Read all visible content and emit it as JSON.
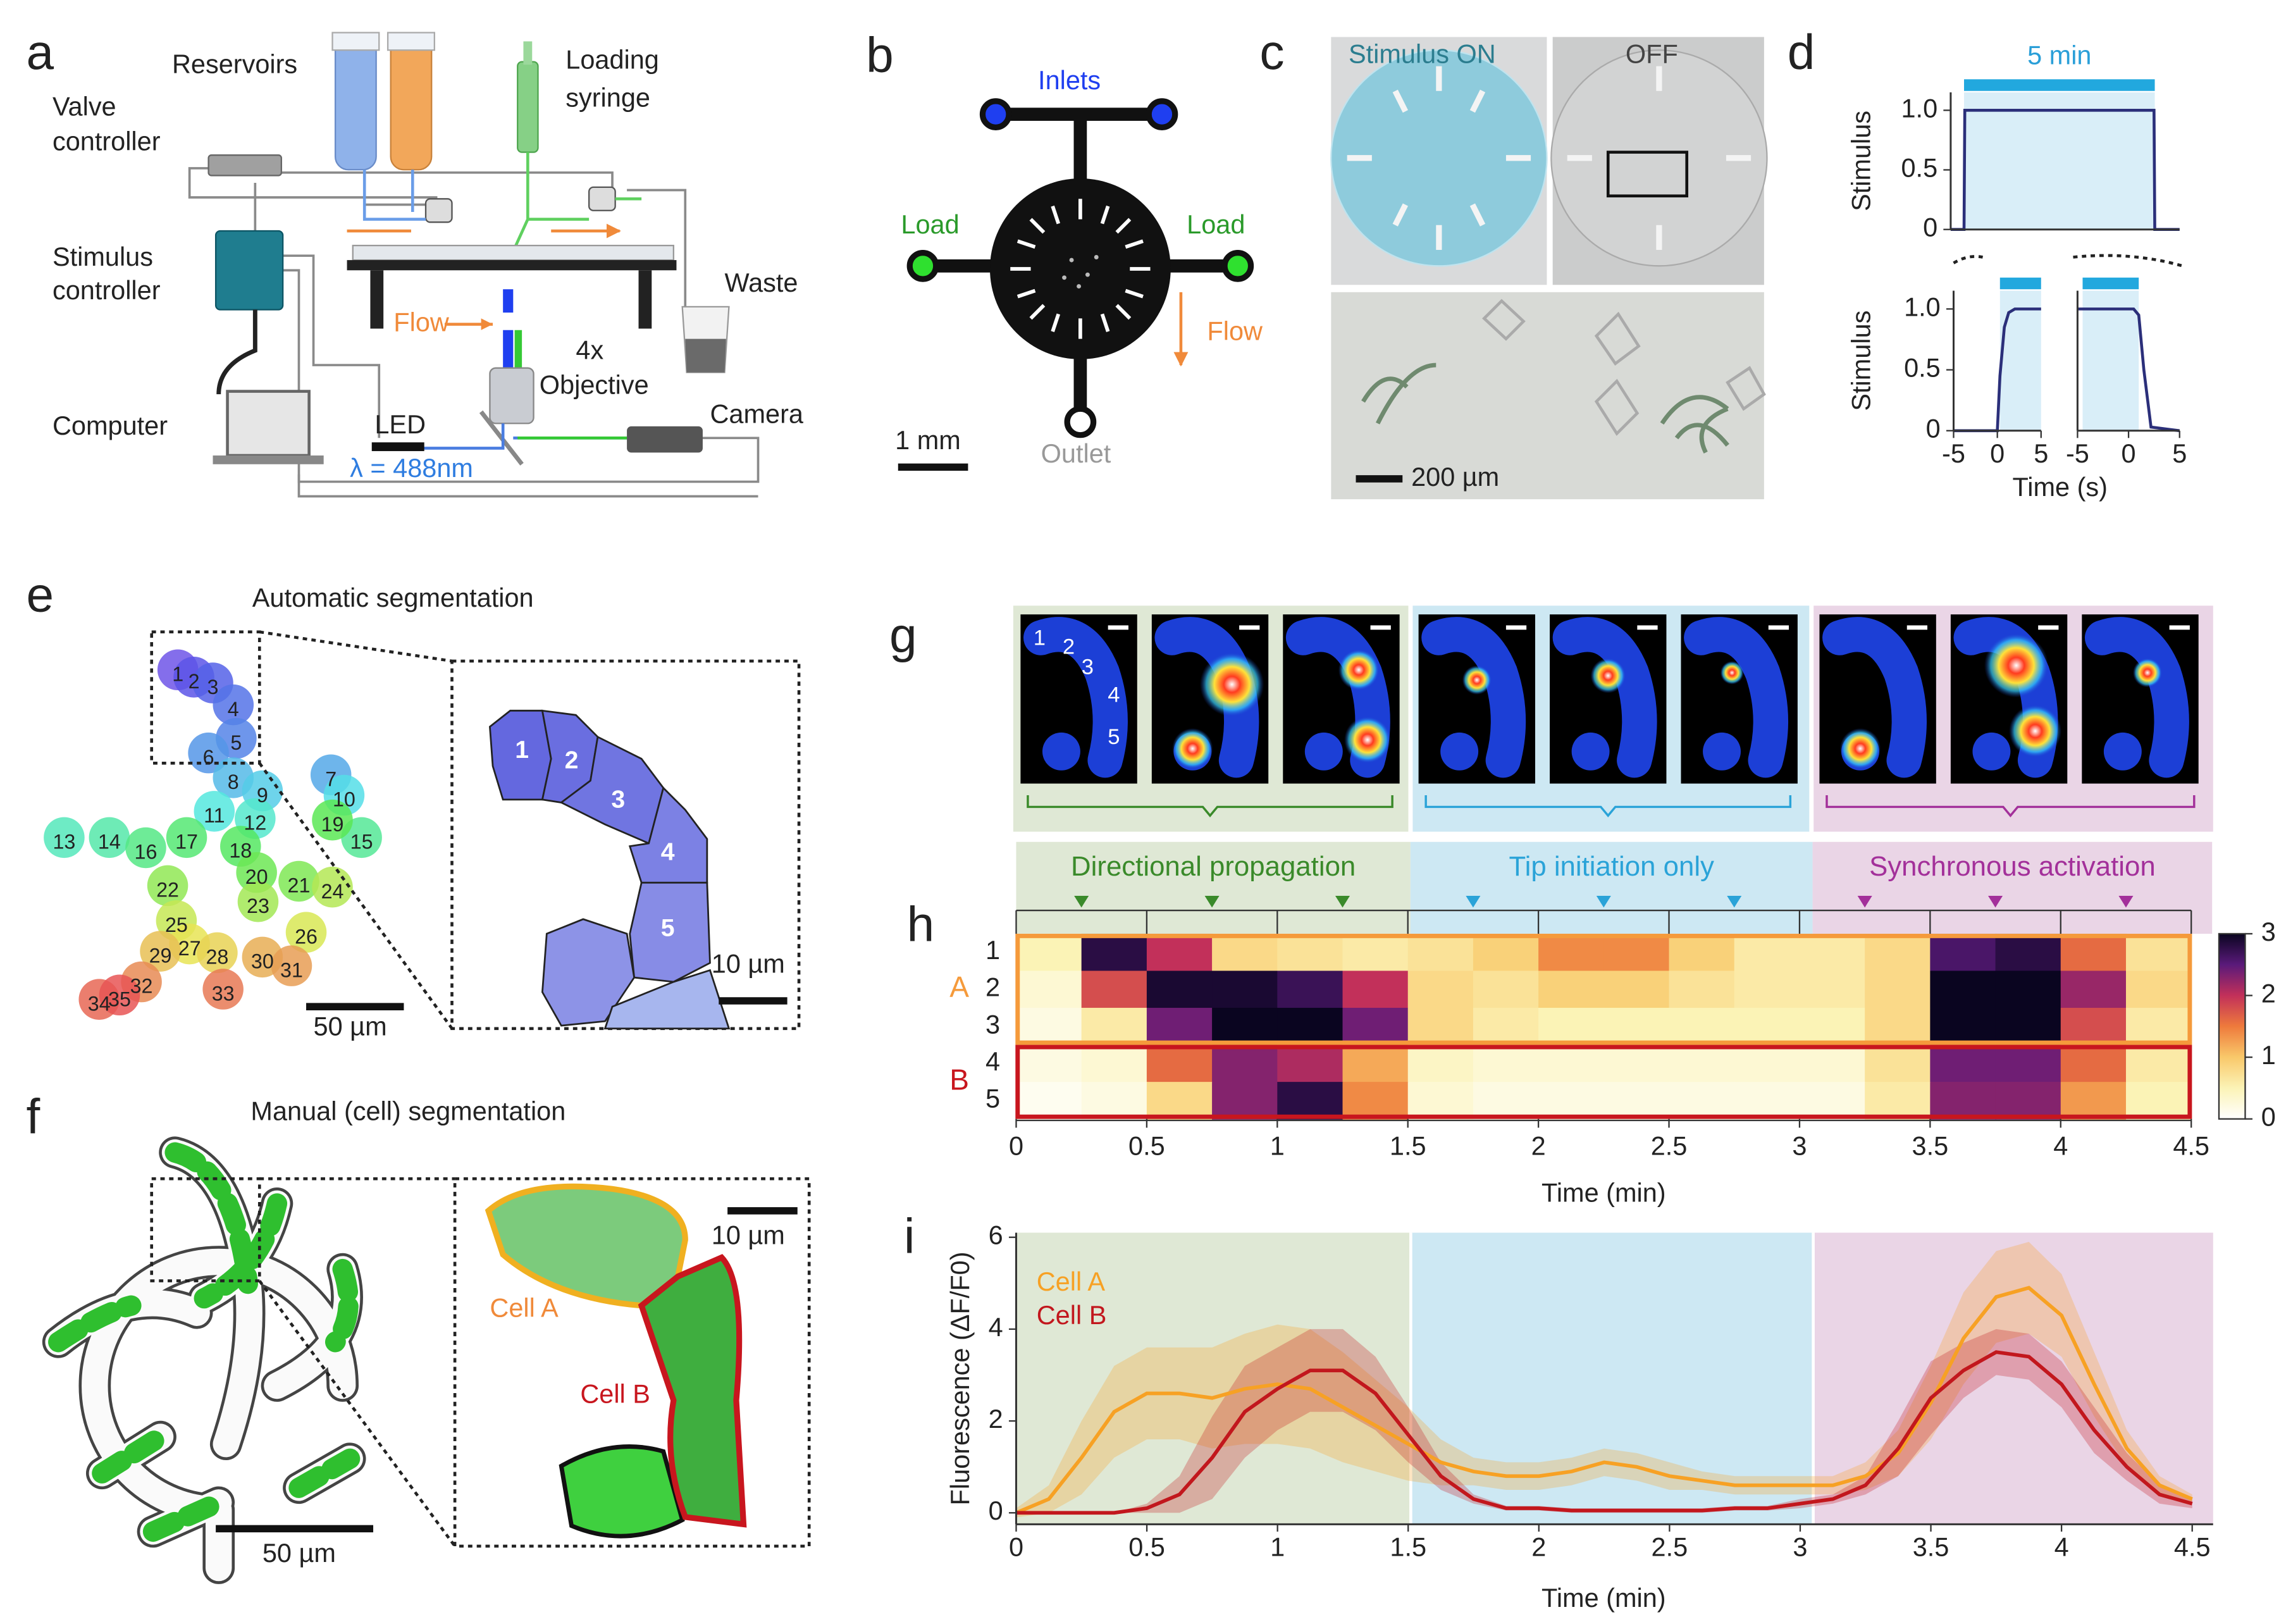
{
  "panel_labels": [
    "a",
    "b",
    "c",
    "d",
    "e",
    "f",
    "g",
    "h",
    "i"
  ],
  "panel_a": {
    "reservoirs": "Reservoirs",
    "syringe": [
      "Loading",
      "syringe"
    ],
    "valve_controller": [
      "Valve",
      "controller"
    ],
    "stimulus_controller": [
      "Stimulus",
      "controller"
    ],
    "computer": "Computer",
    "flow": "Flow",
    "objective": [
      "4x",
      "Objective"
    ],
    "led": "LED",
    "wavelength": "λ = 488nm",
    "camera": "Camera",
    "waste": "Waste"
  },
  "panel_b": {
    "inlets": "Inlets",
    "load_left": "Load",
    "load_right": "Load",
    "flow": "Flow",
    "outlet": "Outlet",
    "scale": "1 mm"
  },
  "panel_c": {
    "on": "Stimulus ON",
    "off": "OFF",
    "scale": "200 µm"
  },
  "panel_e": {
    "title": "Automatic segmentation",
    "scale_main": "50 µm",
    "scale_zoom": "10 µm",
    "roi_labels": [
      1,
      2,
      3,
      4,
      5,
      6,
      7,
      8,
      9,
      10,
      11,
      12,
      13,
      14,
      15,
      16,
      17,
      18,
      19,
      20,
      21,
      22,
      23,
      24,
      25,
      26,
      27,
      28,
      29,
      30,
      31,
      32,
      33,
      34,
      35
    ],
    "zoom_labels": [
      1,
      2,
      3,
      4,
      5
    ]
  },
  "panel_f": {
    "title": "Manual (cell) segmentation",
    "scale_main": "50 µm",
    "scale_zoom": "10 µm",
    "cell_a": "Cell A",
    "cell_b": "Cell B"
  },
  "panel_g": {
    "roi_labels": [
      1,
      2,
      3,
      4,
      5
    ]
  },
  "chart_data": [
    {
      "type": "line",
      "title": "5 min",
      "ylabel": "Stimulus",
      "x": [
        -0.35,
        0,
        0.02,
        4.98,
        5,
        5.65
      ],
      "series": [
        {
          "color": "#2b2f7a",
          "values": [
            0,
            0,
            1,
            1,
            0,
            0
          ]
        }
      ],
      "stimulus": [
        0,
        5
      ],
      "stimulus_color": "#22a8de",
      "fill": "#d9eef8",
      "xlim": [
        -0.35,
        5.65
      ],
      "ylim": [
        0,
        1.15
      ],
      "yticks": [
        0,
        0.5,
        {
          "value": 1,
          "label": "1.0"
        }
      ]
    },
    {
      "type": "line",
      "ylabel": "Stimulus",
      "xlabel": "Time (s)",
      "x": [
        -5,
        0,
        0.3,
        0.8,
        1.3,
        2,
        5
      ],
      "series": [
        {
          "color": "#2b2f7a",
          "values": [
            0,
            0,
            0.45,
            0.85,
            0.97,
            1,
            1
          ]
        }
      ],
      "stimulus": [
        0.3,
        5
      ],
      "stimulus_color": "#22a8de",
      "fill": "#d9eef8",
      "xlim": [
        -5,
        5
      ],
      "ylim": [
        0,
        1.15
      ],
      "xticks": [
        -5,
        0,
        5
      ],
      "yticks": [
        0,
        0.5,
        {
          "value": 1,
          "label": "1.0"
        }
      ]
    },
    {
      "type": "line",
      "x": [
        -5,
        0.5,
        1,
        1.5,
        2.2,
        5
      ],
      "series": [
        {
          "color": "#2b2f7a",
          "values": [
            1,
            1,
            0.95,
            0.5,
            0.03,
            0
          ]
        }
      ],
      "stimulus": [
        -4.5,
        1
      ],
      "stimulus_color": "#22a8de",
      "fill": "#d9eef8",
      "xlim": [
        -5,
        5
      ],
      "ylim": [
        0,
        1.15
      ],
      "xticks": [
        -5,
        0,
        5
      ]
    },
    {
      "type": "heatmap",
      "rows": [
        "1",
        "2",
        "3",
        "4",
        "5"
      ],
      "groups": [
        {
          "name": "A",
          "rows": [
            "1",
            "2",
            "3"
          ],
          "color": "#f59a3b"
        },
        {
          "name": "B",
          "rows": [
            "4",
            "5"
          ],
          "color": "#c8161e"
        }
      ],
      "bins": [
        0,
        0.25,
        0.5,
        0.75,
        1,
        1.25,
        1.5,
        1.75,
        2,
        2.25,
        2.5,
        2.75,
        3,
        3.25,
        3.5,
        3.75,
        4,
        4.25,
        4.5
      ],
      "z": [
        [
          0.5,
          2.8,
          2.0,
          0.8,
          0.7,
          0.6,
          0.7,
          0.9,
          1.4,
          1.4,
          0.9,
          0.6,
          0.6,
          0.8,
          2.6,
          2.8,
          1.6,
          0.7
        ],
        [
          0.3,
          1.8,
          2.9,
          2.9,
          2.7,
          2.0,
          0.8,
          0.7,
          0.9,
          0.9,
          0.7,
          0.6,
          0.6,
          0.8,
          3.0,
          3.2,
          2.2,
          0.8
        ],
        [
          0.2,
          0.6,
          2.4,
          3.0,
          3.0,
          2.4,
          0.8,
          0.6,
          0.5,
          0.5,
          0.5,
          0.5,
          0.5,
          0.8,
          3.1,
          3.2,
          1.8,
          0.6
        ],
        [
          0.2,
          0.3,
          1.6,
          2.3,
          2.1,
          1.2,
          0.4,
          0.3,
          0.3,
          0.3,
          0.3,
          0.3,
          0.3,
          0.7,
          2.4,
          2.4,
          1.6,
          0.6
        ],
        [
          0.1,
          0.2,
          0.8,
          2.3,
          2.8,
          1.4,
          0.3,
          0.2,
          0.2,
          0.2,
          0.2,
          0.2,
          0.2,
          0.6,
          2.3,
          2.3,
          1.3,
          0.5
        ]
      ],
      "zlim": [
        0,
        3
      ],
      "colorbar_ticks": [
        0,
        1,
        2,
        3
      ],
      "colormap": [
        "#ffffff",
        "#fbf3b6",
        "#f9c86a",
        "#ee7a3c",
        "#c2305a",
        "#5a1a7a",
        "#0a0520"
      ],
      "xlim": [
        0,
        4.5
      ],
      "xticks": [
        0,
        0.5,
        1,
        1.5,
        2,
        2.5,
        3,
        3.5,
        4,
        4.5
      ],
      "xlabel": "Time (min)",
      "phases": [
        {
          "name": "Directional propagation",
          "start": 0,
          "end": 1.51,
          "color": "#dfe8d5",
          "text_color": "#3a8a2a",
          "markers": [
            0.25,
            0.75,
            1.25
          ]
        },
        {
          "name": "Tip initiation only",
          "start": 1.51,
          "end": 3.05,
          "color": "#cde8f3",
          "text_color": "#2aa3d8",
          "markers": [
            1.75,
            2.25,
            2.75
          ]
        },
        {
          "name": "Synchronous activation",
          "start": 3.05,
          "end": 4.58,
          "color": "#ead5e6",
          "text_color": "#a3309a",
          "markers": [
            3.25,
            3.75,
            4.25
          ]
        }
      ]
    },
    {
      "type": "line",
      "ylabel": "Fluorescence (ΔF/F0)",
      "xlabel": "Time (min)",
      "x": [
        0,
        0.125,
        0.25,
        0.375,
        0.5,
        0.625,
        0.75,
        0.875,
        1,
        1.125,
        1.25,
        1.375,
        1.5,
        1.625,
        1.75,
        1.875,
        2,
        2.125,
        2.25,
        2.375,
        2.5,
        2.625,
        2.75,
        2.875,
        3,
        3.125,
        3.25,
        3.375,
        3.5,
        3.625,
        3.75,
        3.875,
        4,
        4.125,
        4.25,
        4.375,
        4.5
      ],
      "series": [
        {
          "name": "Cell A",
          "color": "#f7a124",
          "values": [
            0,
            0.3,
            1.2,
            2.2,
            2.6,
            2.6,
            2.5,
            2.7,
            2.8,
            2.7,
            2.3,
            1.9,
            1.5,
            1.1,
            0.9,
            0.8,
            0.8,
            0.9,
            1.1,
            1.0,
            0.8,
            0.7,
            0.6,
            0.6,
            0.6,
            0.6,
            0.8,
            1.3,
            2.4,
            3.8,
            4.7,
            4.9,
            4.3,
            2.8,
            1.4,
            0.6,
            0.3
          ],
          "errors": [
            0.1,
            0.3,
            0.8,
            1.0,
            1.0,
            1.0,
            1.1,
            1.2,
            1.3,
            1.3,
            1.2,
            1.0,
            0.8,
            0.5,
            0.3,
            0.3,
            0.3,
            0.3,
            0.3,
            0.3,
            0.3,
            0.2,
            0.2,
            0.2,
            0.2,
            0.2,
            0.3,
            0.5,
            0.8,
            1.0,
            1.0,
            1.0,
            0.9,
            0.7,
            0.4,
            0.2,
            0.1
          ]
        },
        {
          "name": "Cell B",
          "color": "#c2171d",
          "values": [
            0,
            0,
            0,
            0,
            0.1,
            0.4,
            1.2,
            2.2,
            2.7,
            3.1,
            3.1,
            2.6,
            1.7,
            0.8,
            0.3,
            0.1,
            0.1,
            0.05,
            0.05,
            0.05,
            0.05,
            0.05,
            0.1,
            0.1,
            0.2,
            0.3,
            0.6,
            1.4,
            2.5,
            3.1,
            3.5,
            3.4,
            2.8,
            1.8,
            1.0,
            0.4,
            0.2
          ],
          "errors": [
            0,
            0,
            0,
            0,
            0.1,
            0.4,
            0.9,
            1.0,
            0.9,
            0.9,
            0.9,
            0.8,
            0.6,
            0.3,
            0.1,
            0.05,
            0.05,
            0.05,
            0.05,
            0.05,
            0.05,
            0.05,
            0.05,
            0.05,
            0.1,
            0.1,
            0.2,
            0.6,
            0.8,
            0.6,
            0.5,
            0.5,
            0.5,
            0.5,
            0.3,
            0.2,
            0.1
          ]
        }
      ],
      "xlim": [
        0,
        4.58
      ],
      "ylim": [
        -0.25,
        6.1
      ],
      "xticks": [
        0,
        0.5,
        1,
        1.5,
        2,
        2.5,
        3,
        3.5,
        4,
        4.5
      ],
      "yticks": [
        0,
        2,
        4,
        6
      ]
    }
  ]
}
